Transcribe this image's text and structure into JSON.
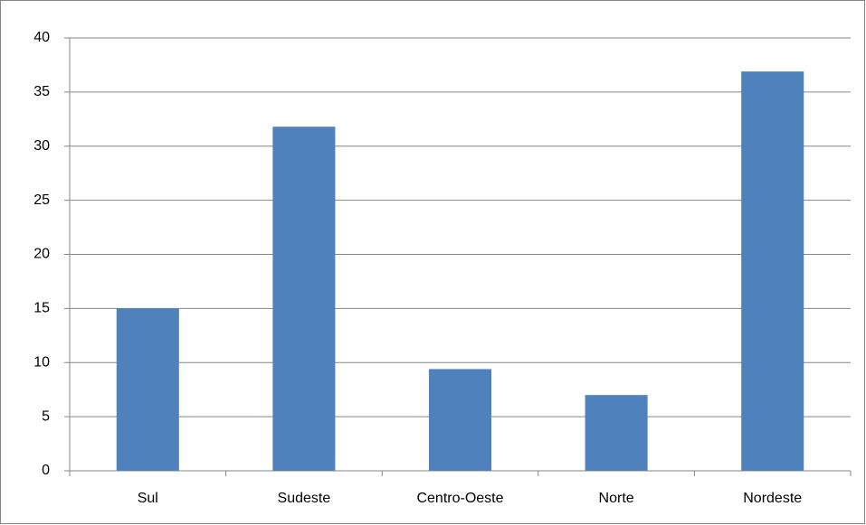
{
  "chart_data": {
    "type": "bar",
    "categories": [
      "Sul",
      "Sudeste",
      "Centro-Oeste",
      "Norte",
      "Nordeste"
    ],
    "values": [
      15,
      31.8,
      9.4,
      7,
      36.9
    ],
    "color": "#4f81bd",
    "ylim": [
      0,
      40
    ],
    "yticks": [
      0,
      5,
      10,
      15,
      20,
      25,
      30,
      35,
      40
    ],
    "grid": true
  }
}
